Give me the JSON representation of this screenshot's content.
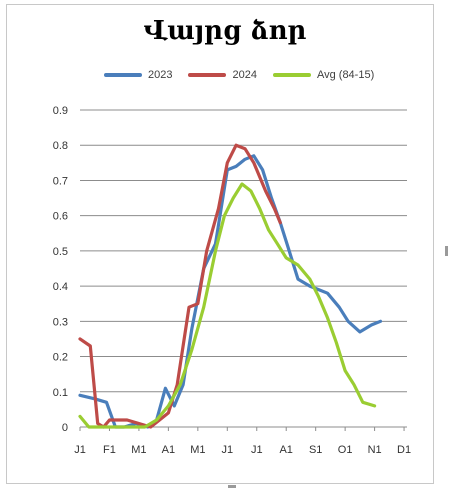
{
  "chart_data": {
    "type": "line",
    "title": "Վայրց ձոր",
    "legend_position": "top",
    "grid": true,
    "ylim": [
      0,
      0.9
    ],
    "y_ticks": [
      "0",
      "0.1",
      "0.2",
      "0.3",
      "0.4",
      "0.5",
      "0.6",
      "0.7",
      "0.8",
      "0.9"
    ],
    "x_tick_labels": [
      "J1",
      "F1",
      "M1",
      "A1",
      "M1",
      "J1",
      "J1",
      "A1",
      "S1",
      "O1",
      "N1",
      "D1"
    ],
    "series": [
      {
        "name": "2023",
        "color": "#4a7ebb",
        "points": [
          [
            0,
            0.09
          ],
          [
            0.5,
            0.08
          ],
          [
            0.9,
            0.07
          ],
          [
            1.2,
            0.0
          ],
          [
            1.5,
            0.0
          ],
          [
            1.9,
            0.01
          ],
          [
            2.3,
            0.0
          ],
          [
            2.6,
            0.02
          ],
          [
            2.9,
            0.11
          ],
          [
            3.2,
            0.06
          ],
          [
            3.5,
            0.12
          ],
          [
            3.8,
            0.28
          ],
          [
            4.2,
            0.45
          ],
          [
            4.6,
            0.52
          ],
          [
            5.0,
            0.73
          ],
          [
            5.3,
            0.74
          ],
          [
            5.6,
            0.76
          ],
          [
            5.9,
            0.77
          ],
          [
            6.2,
            0.73
          ],
          [
            6.5,
            0.65
          ],
          [
            6.8,
            0.58
          ],
          [
            7.1,
            0.5
          ],
          [
            7.4,
            0.42
          ],
          [
            7.8,
            0.4
          ],
          [
            8.1,
            0.39
          ],
          [
            8.4,
            0.38
          ],
          [
            8.8,
            0.34
          ],
          [
            9.1,
            0.3
          ],
          [
            9.5,
            0.27
          ],
          [
            9.9,
            0.29
          ],
          [
            10.2,
            0.3
          ]
        ]
      },
      {
        "name": "2024",
        "color": "#be4b48",
        "points": [
          [
            0,
            0.25
          ],
          [
            0.35,
            0.23
          ],
          [
            0.6,
            0.01
          ],
          [
            0.8,
            0.0
          ],
          [
            1.0,
            0.02
          ],
          [
            1.3,
            0.02
          ],
          [
            1.6,
            0.02
          ],
          [
            2.0,
            0.01
          ],
          [
            2.4,
            0.0
          ],
          [
            2.7,
            0.02
          ],
          [
            3.0,
            0.04
          ],
          [
            3.3,
            0.12
          ],
          [
            3.7,
            0.34
          ],
          [
            4.0,
            0.35
          ],
          [
            4.3,
            0.5
          ],
          [
            4.7,
            0.62
          ],
          [
            5.0,
            0.75
          ],
          [
            5.3,
            0.8
          ],
          [
            5.6,
            0.79
          ],
          [
            5.9,
            0.75
          ],
          [
            6.3,
            0.67
          ],
          [
            6.6,
            0.62
          ],
          [
            6.8,
            0.58
          ]
        ]
      },
      {
        "name": "Avg (84-15)",
        "color": "#9acd32",
        "points": [
          [
            0,
            0.03
          ],
          [
            0.3,
            0.0
          ],
          [
            0.6,
            0.0
          ],
          [
            1.0,
            0.0
          ],
          [
            1.4,
            0.0
          ],
          [
            1.8,
            0.0
          ],
          [
            2.2,
            0.0
          ],
          [
            2.6,
            0.02
          ],
          [
            3.0,
            0.06
          ],
          [
            3.4,
            0.12
          ],
          [
            3.8,
            0.22
          ],
          [
            4.2,
            0.34
          ],
          [
            4.6,
            0.5
          ],
          [
            4.9,
            0.6
          ],
          [
            5.2,
            0.65
          ],
          [
            5.5,
            0.69
          ],
          [
            5.8,
            0.67
          ],
          [
            6.1,
            0.62
          ],
          [
            6.4,
            0.56
          ],
          [
            6.7,
            0.52
          ],
          [
            7.0,
            0.48
          ],
          [
            7.4,
            0.46
          ],
          [
            7.8,
            0.42
          ],
          [
            8.1,
            0.37
          ],
          [
            8.4,
            0.31
          ],
          [
            8.7,
            0.24
          ],
          [
            9.0,
            0.16
          ],
          [
            9.3,
            0.12
          ],
          [
            9.6,
            0.07
          ],
          [
            10.0,
            0.06
          ]
        ]
      }
    ]
  }
}
